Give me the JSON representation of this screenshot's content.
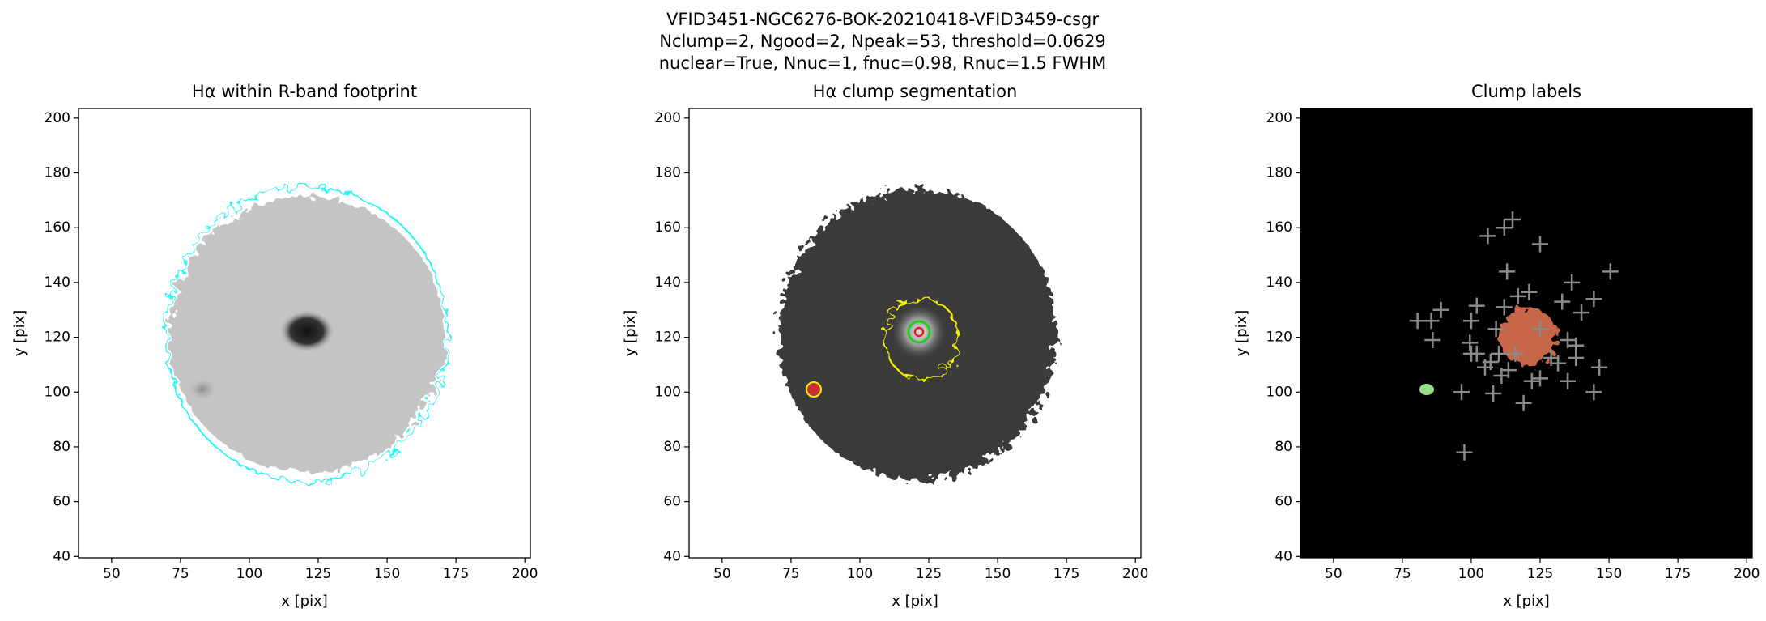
{
  "title": [
    "VFID3451-NGC6276-BOK-20210418-VFID3459-csgr",
    "Nclump=2, Ngood=2, Npeak=53, threshold=0.0629",
    "nuclear=True, Nnuc=1, fnuc=0.98, Rnuc=1.5 FWHM"
  ],
  "chart_data": [
    {
      "type": "image",
      "title": "Hα within R-band footprint",
      "xlabel": "x [pix]",
      "ylabel": "y [pix]",
      "xlim": [
        38,
        202
      ],
      "ylim": [
        39.5,
        203.5
      ],
      "xticks": [
        50,
        75,
        100,
        125,
        150,
        175,
        200
      ],
      "yticks": [
        40,
        60,
        80,
        100,
        120,
        140,
        160,
        180,
        200
      ]
    },
    {
      "type": "image",
      "title": "Hα clump segmentation",
      "xlabel": "x [pix]",
      "ylabel": "y [pix]",
      "xlim": [
        38,
        202
      ],
      "ylim": [
        39.5,
        203.5
      ],
      "xticks": [
        50,
        75,
        100,
        125,
        150,
        175,
        200
      ],
      "yticks": [
        40,
        60,
        80,
        100,
        120,
        140,
        160,
        180,
        200
      ]
    },
    {
      "type": "scatter",
      "title": "Clump labels",
      "xlabel": "x [pix]",
      "ylabel": "y [pix]",
      "xlim": [
        38,
        202
      ],
      "ylim": [
        39.5,
        203.5
      ],
      "xticks": [
        50,
        75,
        100,
        125,
        150,
        175,
        200
      ],
      "yticks": [
        40,
        60,
        80,
        100,
        120,
        140,
        160,
        180,
        200
      ],
      "marker": "+",
      "color": "#8a8a8a",
      "x": [
        115,
        112,
        106,
        125,
        150.5,
        113,
        136.5,
        121,
        144.5,
        133,
        117,
        89,
        102,
        112,
        140,
        80.5,
        85.5,
        100,
        109,
        86,
        99.5,
        135,
        138,
        102,
        100,
        110,
        116,
        138,
        129,
        146.5,
        107,
        105,
        113.5,
        131.5,
        122,
        111,
        125,
        135,
        96.5,
        144.5,
        108,
        119,
        97.5,
        125
      ],
      "values": [
        163,
        160,
        157,
        154,
        144,
        144,
        140,
        136.5,
        134,
        133,
        135,
        130,
        131.5,
        131,
        129,
        126,
        126,
        126,
        123,
        119,
        118,
        119,
        117,
        114,
        114,
        114,
        114,
        112.5,
        112.5,
        109,
        111,
        109,
        108,
        110.5,
        104,
        106,
        105,
        104,
        100,
        100,
        99.5,
        96,
        78,
        123
      ]
    }
  ]
}
